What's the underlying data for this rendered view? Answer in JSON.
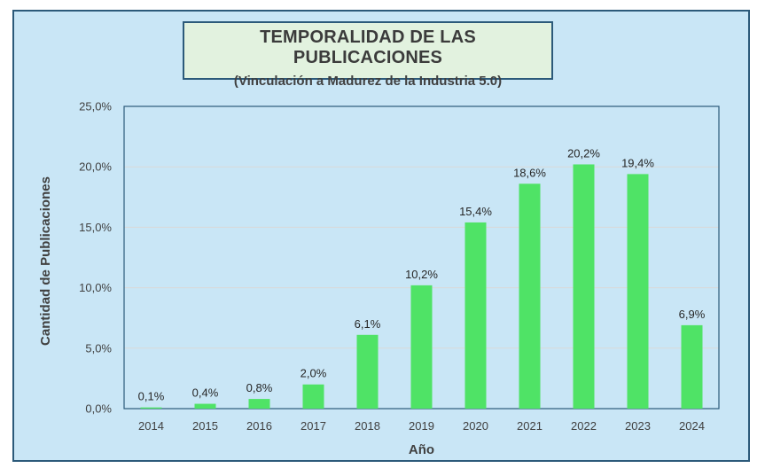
{
  "chart_data": {
    "type": "bar",
    "title": "TEMPORALIDAD DE LAS PUBLICACIONES",
    "subtitle": "(Vinculación a Madurez de la Industria 5.0)",
    "xlabel": "Año",
    "ylabel": "Cantidad de Publicaciones",
    "categories": [
      "2014",
      "2015",
      "2016",
      "2017",
      "2018",
      "2019",
      "2020",
      "2021",
      "2022",
      "2023",
      "2024"
    ],
    "values": [
      0.1,
      0.4,
      0.8,
      2.0,
      6.1,
      10.2,
      15.4,
      18.6,
      20.2,
      19.4,
      6.9
    ],
    "data_labels": [
      "0,1%",
      "0,4%",
      "0,8%",
      "2,0%",
      "6,1%",
      "10,2%",
      "15,4%",
      "18,6%",
      "20,2%",
      "19,4%",
      "6,9%"
    ],
    "yticks": [
      0,
      5,
      10,
      15,
      20,
      25
    ],
    "ytick_labels": [
      "0,0%",
      "5,0%",
      "10,0%",
      "15,0%",
      "20,0%",
      "25,0%"
    ],
    "ylim": [
      0,
      25
    ],
    "grid": true,
    "bar_color": "#4fe366",
    "background_color": "#c9e6f6",
    "title_box_color": "#e2f2df",
    "border_color": "#2c5a7a"
  }
}
